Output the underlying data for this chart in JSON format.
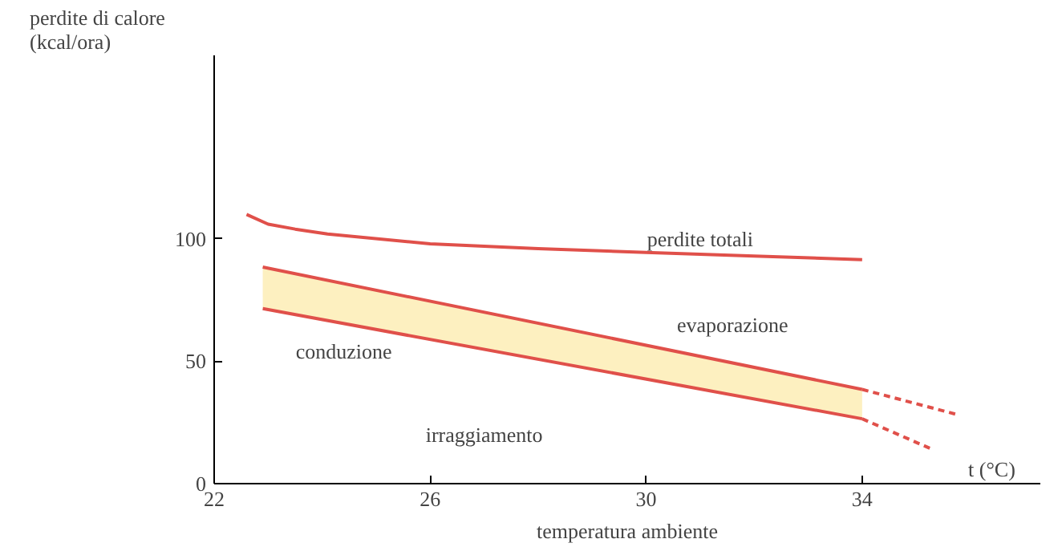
{
  "chart_data": {
    "type": "line",
    "ylabel": "perdite di calore\n(kcal/ora)",
    "xlabel": "temperatura ambiente",
    "xlim": [
      22,
      37.3
    ],
    "ylim": [
      0,
      175
    ],
    "xticks": [
      22,
      26,
      30,
      34
    ],
    "yticks": [
      0,
      50,
      100
    ],
    "grid": false,
    "marker": "none",
    "series": [
      {
        "x": [
          22.6,
          23,
          23.5,
          24.1,
          26,
          28,
          30,
          32,
          34
        ],
        "values": [
          110,
          106,
          104,
          102,
          98,
          96,
          94.5,
          93,
          91.5
        ],
        "color": "#e0504a",
        "line_style": "solid"
      },
      {
        "x": [
          22.9,
          34
        ],
        "values": [
          88.5,
          38.5
        ],
        "lower": [
          71.5,
          26.5
        ],
        "upper": [
          88.5,
          38.5
        ],
        "color": "#e0504a",
        "line_style": "solid"
      },
      {
        "x": [
          22.9,
          34
        ],
        "values": [
          71.5,
          26.5
        ],
        "color": "#e0504a",
        "line_style": "solid"
      },
      {
        "x": [
          34,
          35.8
        ],
        "values": [
          38.5,
          28
        ],
        "color": "#e0504a",
        "line_style": "dashed"
      },
      {
        "x": [
          34,
          35.3
        ],
        "values": [
          26.5,
          14
        ],
        "color": "#e0504a",
        "line_style": "dashed"
      }
    ],
    "annotations": [
      "perdite totali",
      "evaporazione",
      "conduzione",
      "irraggiamento",
      "t (°C)"
    ]
  }
}
